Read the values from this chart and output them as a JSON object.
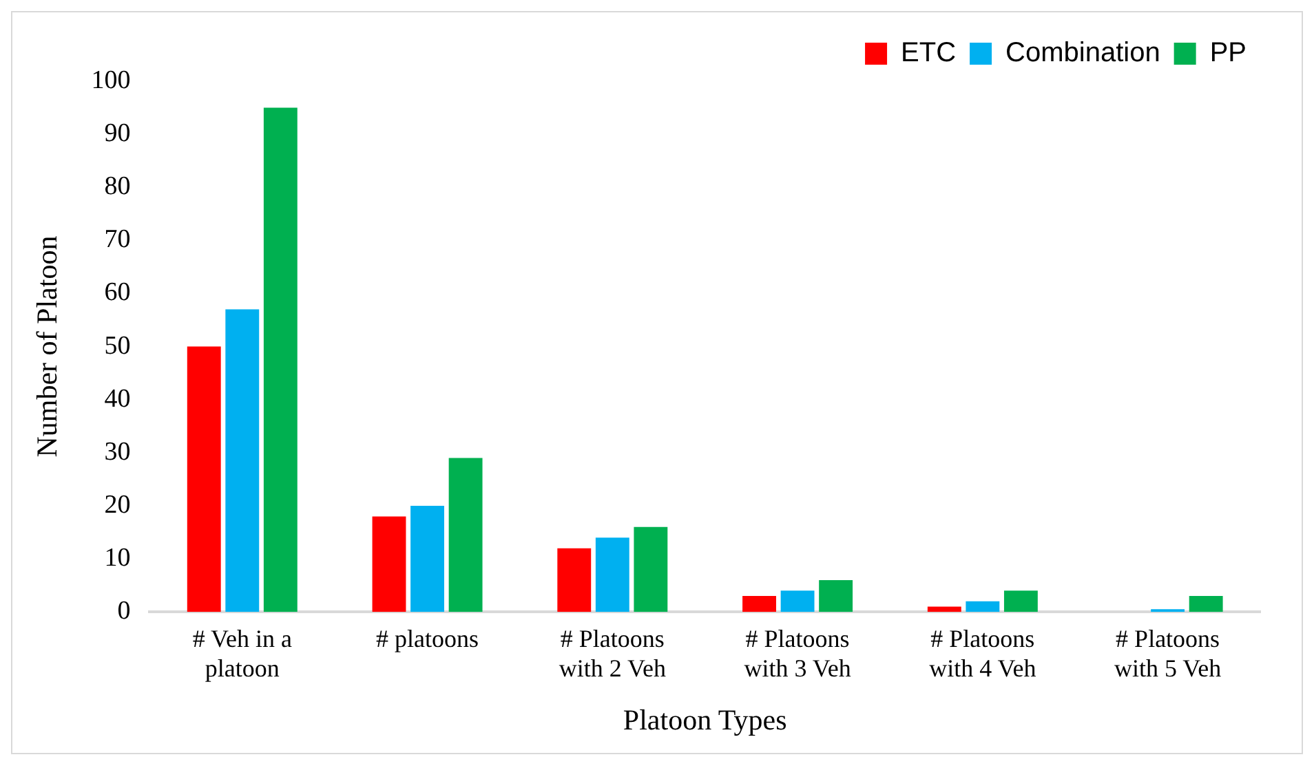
{
  "chart_data": {
    "type": "bar",
    "xlabel": "Platoon Types",
    "ylabel": "Number of Platoon",
    "categories": [
      "# Veh in a platoon",
      "# platoons",
      "# Platoons with 2 Veh",
      "# Platoons with 3 Veh",
      "# Platoons with 4 Veh",
      "# Platoons with 5 Veh"
    ],
    "series": [
      {
        "name": "ETC",
        "color": "#ff0000",
        "values": [
          50,
          18,
          12,
          3,
          1,
          0
        ]
      },
      {
        "name": "Combination",
        "color": "#00b0f0",
        "values": [
          57,
          20,
          14,
          4,
          2,
          0.5
        ]
      },
      {
        "name": "PP",
        "color": "#00b050",
        "values": [
          95,
          29,
          16,
          6,
          4,
          3
        ]
      }
    ],
    "ylim": [
      0,
      100
    ],
    "yticks": [
      0,
      10,
      20,
      30,
      40,
      50,
      60,
      70,
      80,
      90,
      100
    ],
    "grid": false,
    "legend": "top right"
  }
}
